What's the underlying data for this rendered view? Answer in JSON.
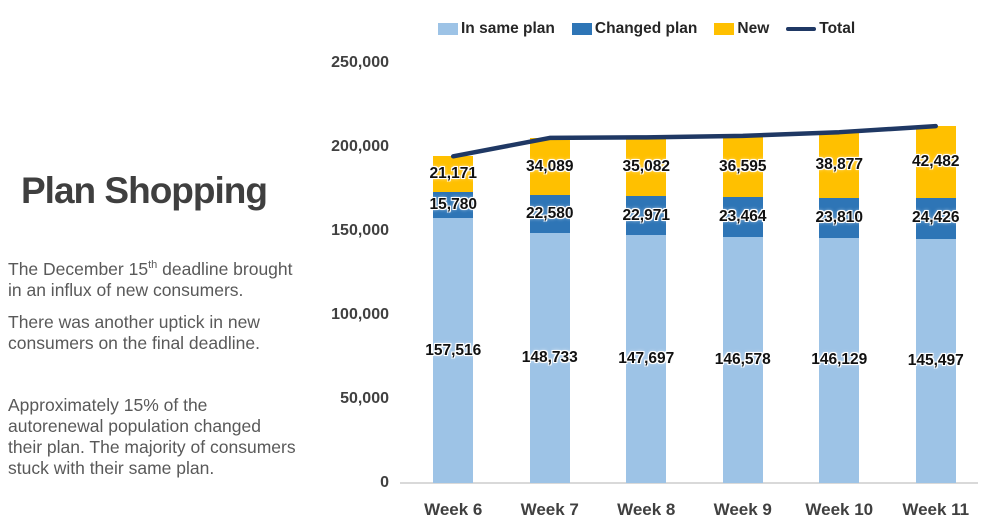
{
  "slide": {
    "title": "Plan Shopping",
    "paragraph1": {
      "pre": "The December 15",
      "sup": "th",
      "post": " deadline brought\nin an influx of new consumers."
    },
    "paragraph2": "There was another uptick in new\nconsumers on the final deadline.",
    "paragraph3": "Approximately 15% of the\nautorenewal population changed\ntheir plan. The majority of consumers\nstuck with their same plan."
  },
  "chart_data": {
    "type": "bar",
    "subtype": "stacked-column-with-total-line",
    "title": "",
    "categories": [
      "Week 6",
      "Week 7",
      "Week 8",
      "Week 9",
      "Week 10",
      "Week 11"
    ],
    "series": [
      {
        "name": "In same plan",
        "color": "#9DC3E6",
        "values": [
          157516,
          148733,
          147697,
          146578,
          146129,
          145497
        ]
      },
      {
        "name": "Changed plan",
        "color": "#2E75B6",
        "values": [
          15780,
          22580,
          22971,
          23464,
          23810,
          24426
        ]
      },
      {
        "name": "New",
        "color": "#FFC000",
        "values": [
          21171,
          34089,
          35082,
          36595,
          38877,
          42482
        ]
      }
    ],
    "line_series": {
      "name": "Total",
      "color": "#1F3864",
      "values": [
        194467,
        205402,
        205750,
        206637,
        208816,
        212405
      ]
    },
    "y_axis": {
      "min": 0,
      "max": 250000,
      "tick_step": 50000,
      "tick_labels": [
        "0",
        "50,000",
        "100,000",
        "150,000",
        "200,000",
        "250,000"
      ]
    },
    "legend_position": "top",
    "grid": false,
    "data_labels": "inside-center, comma formatted"
  },
  "colors": {
    "title_text": "#3F3F3F",
    "body_text": "#595959",
    "axis_text": "#404040",
    "data_label_text": "#111111",
    "legend_text": "#262626",
    "axis_line": "#D9D9D9",
    "background": "#FFFFFF"
  }
}
